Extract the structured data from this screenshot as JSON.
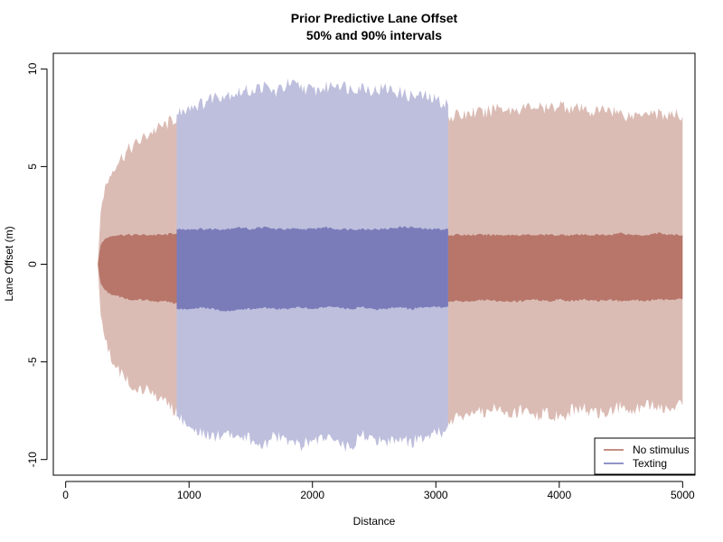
{
  "chart_data": {
    "type": "area",
    "title": "Prior Predictive Lane Offset",
    "subtitle": "50% and 90% intervals",
    "xlabel": "Distance",
    "ylabel": "Lane Offset (m)",
    "xlim": [
      -100,
      5100
    ],
    "ylim": [
      -10.8,
      10.8
    ],
    "x_ticks": [
      0,
      1000,
      2000,
      3000,
      4000,
      5000
    ],
    "y_ticks": [
      -10,
      -5,
      0,
      5,
      10
    ],
    "grid": false,
    "legend": {
      "position": "bottom-right"
    },
    "series": [
      {
        "name": "No stimulus",
        "color": "#b06a5c",
        "segments": [
          {
            "x": [
              260,
              280,
              300,
              350,
              400,
              500,
              600,
              700,
              800,
              900
            ],
            "p05": [
              0,
              -2.2,
              -3.4,
              -4.5,
              -5.3,
              -6.0,
              -6.4,
              -6.6,
              -7.0,
              -7.6
            ],
            "p25": [
              0,
              -0.9,
              -1.2,
              -1.5,
              -1.6,
              -1.8,
              -1.8,
              -1.9,
              -1.9,
              -2.0
            ],
            "p75": [
              0,
              0.9,
              1.2,
              1.4,
              1.5,
              1.5,
              1.5,
              1.5,
              1.5,
              1.6
            ],
            "p95": [
              0,
              2.3,
              3.5,
              4.4,
              5.1,
              5.8,
              6.3,
              6.8,
              7.1,
              7.5
            ]
          },
          {
            "x": [
              3100,
              3200,
              3300,
              3400,
              3500,
              3600,
              3700,
              3800,
              3900,
              4000,
              4100,
              4200,
              4300,
              4400,
              4500,
              4600,
              4700,
              4800,
              4900,
              5000
            ],
            "p05": [
              -8.1,
              -7.8,
              -7.6,
              -7.5,
              -7.4,
              -7.7,
              -7.5,
              -7.8,
              -7.6,
              -7.9,
              -7.5,
              -7.4,
              -7.7,
              -7.5,
              -7.3,
              -7.4,
              -7.2,
              -7.4,
              -7.3,
              -7.2
            ],
            "p25": [
              -1.9,
              -1.9,
              -1.9,
              -1.8,
              -1.9,
              -1.9,
              -1.9,
              -1.8,
              -1.9,
              -1.8,
              -1.9,
              -1.8,
              -1.9,
              -1.8,
              -1.9,
              -1.8,
              -1.9,
              -1.8,
              -1.8,
              -1.8
            ],
            "p75": [
              1.5,
              1.5,
              1.5,
              1.5,
              1.5,
              1.5,
              1.5,
              1.5,
              1.5,
              1.5,
              1.5,
              1.5,
              1.5,
              1.5,
              1.6,
              1.5,
              1.5,
              1.6,
              1.5,
              1.5
            ],
            "p95": [
              7.6,
              7.6,
              7.8,
              7.7,
              8.1,
              7.9,
              8.0,
              8.1,
              7.9,
              8.2,
              8.0,
              7.9,
              7.8,
              8.0,
              7.7,
              7.6,
              7.9,
              7.7,
              7.6,
              7.6
            ]
          }
        ]
      },
      {
        "name": "Texting",
        "color": "#6e70b4",
        "segments": [
          {
            "x": [
              900,
              1000,
              1100,
              1200,
              1300,
              1400,
              1500,
              1600,
              1700,
              1800,
              1900,
              2000,
              2100,
              2200,
              2300,
              2400,
              2500,
              2600,
              2700,
              2800,
              2900,
              3000,
              3100
            ],
            "p05": [
              -7.8,
              -8.3,
              -8.6,
              -8.9,
              -8.5,
              -8.7,
              -9.0,
              -9.2,
              -8.8,
              -9.1,
              -9.3,
              -9.0,
              -8.9,
              -9.1,
              -9.4,
              -8.8,
              -8.9,
              -9.2,
              -9.0,
              -9.1,
              -8.9,
              -8.7,
              -8.5
            ],
            "p25": [
              -2.3,
              -2.3,
              -2.2,
              -2.3,
              -2.4,
              -2.3,
              -2.3,
              -2.2,
              -2.3,
              -2.3,
              -2.2,
              -2.3,
              -2.2,
              -2.2,
              -2.3,
              -2.2,
              -2.3,
              -2.3,
              -2.2,
              -2.3,
              -2.2,
              -2.2,
              -2.2
            ],
            "p75": [
              1.8,
              1.8,
              1.8,
              1.8,
              1.8,
              1.9,
              1.8,
              1.9,
              1.8,
              1.8,
              1.8,
              1.8,
              1.9,
              1.8,
              1.8,
              1.8,
              1.8,
              1.8,
              1.9,
              1.9,
              1.8,
              1.8,
              1.8
            ],
            "p95": [
              7.7,
              8.1,
              8.2,
              8.6,
              8.7,
              8.8,
              8.9,
              9.1,
              8.8,
              9.2,
              9.1,
              8.9,
              9.0,
              9.3,
              9.0,
              9.1,
              8.9,
              9.0,
              8.8,
              8.6,
              8.6,
              8.4,
              8.2
            ]
          }
        ]
      }
    ]
  }
}
